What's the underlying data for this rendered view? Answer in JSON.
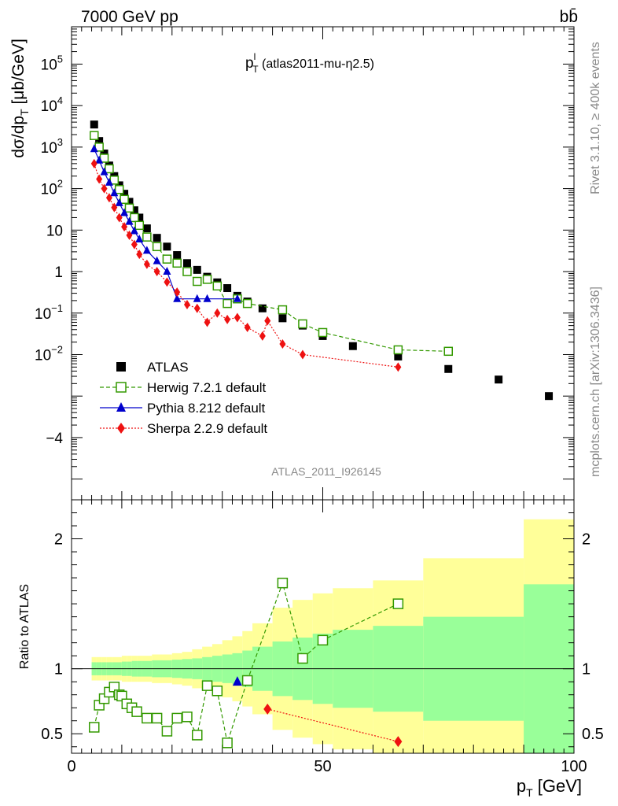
{
  "header": {
    "left": "7000 GeV pp",
    "right": "bb̄"
  },
  "side_labels": {
    "top": "Rivet 3.1.10, ≥ 400k events",
    "bottom": "mcplots.cern.ch [arXiv:1306.3436]"
  },
  "plot_title": "p_T^l (atlas2011-mu-η2.5)",
  "watermark": "ATLAS_2011_I926145",
  "chart_data": [
    {
      "type": "scatter",
      "panel": "main",
      "xlabel": "p_T [GeV]",
      "ylabel": "dσ/dp_T [μb/GeV]",
      "xlim": [
        0,
        100
      ],
      "ylim_log10": [
        -5.5,
        5.9
      ],
      "y_scale": "log",
      "ytick_labels": [
        "10^5",
        "10^4",
        "10^3",
        "10^2",
        "10",
        "1",
        "10^-1",
        "10^-2",
        "−4"
      ],
      "legend_position": "bottom-left",
      "series": [
        {
          "name": "ATLAS",
          "color": "#000000",
          "marker": "filled-square",
          "x": [
            4.5,
            5.5,
            6.5,
            7.5,
            8.5,
            9.5,
            10.5,
            11.5,
            12.5,
            13.5,
            15,
            17,
            19,
            21,
            23,
            25,
            27,
            29,
            31,
            33,
            35,
            38,
            42,
            46,
            50,
            56,
            65,
            75,
            85,
            95
          ],
          "y": [
            3500,
            1400,
            700,
            360,
            200,
            120,
            75,
            48,
            30,
            20,
            11,
            6.5,
            4,
            2.5,
            1.6,
            1.1,
            0.75,
            0.55,
            0.4,
            0.26,
            0.19,
            0.13,
            0.075,
            0.05,
            0.028,
            0.016,
            0.009,
            0.0045,
            0.0025,
            0.001
          ]
        },
        {
          "name": "Herwig 7.2.1 default",
          "color": "#339900",
          "marker": "open-square",
          "line": "dashed",
          "x": [
            4.5,
            5.5,
            6.5,
            7.5,
            8.5,
            9.5,
            10.5,
            11.5,
            12.5,
            13.5,
            15,
            17,
            19,
            21,
            23,
            25,
            27,
            29,
            31,
            33,
            35,
            42,
            46,
            50,
            65,
            75
          ],
          "y": [
            1900,
            1000,
            540,
            300,
            160,
            95,
            55,
            34,
            20,
            13,
            6.8,
            4,
            2,
            1.6,
            1,
            0.58,
            0.65,
            0.45,
            0.17,
            0.22,
            0.17,
            0.12,
            0.055,
            0.034,
            0.013,
            0.012
          ]
        },
        {
          "name": "Pythia 8.212 default",
          "color": "#0000cc",
          "marker": "filled-triangle",
          "line": "solid",
          "x": [
            4.5,
            5.5,
            6.5,
            7.5,
            8.5,
            9.5,
            10.5,
            11.5,
            12.5,
            13.5,
            15,
            17,
            19,
            21,
            25,
            27,
            33
          ],
          "y": [
            900,
            480,
            250,
            140,
            78,
            45,
            26,
            16,
            9.5,
            6,
            3.2,
            1.8,
            1,
            0.22,
            0.22,
            0.22,
            0.22
          ]
        },
        {
          "name": "Sherpa 2.2.9 default",
          "color": "#ee1111",
          "marker": "filled-diamond",
          "line": "dotted",
          "x": [
            4.5,
            5.5,
            6.5,
            7.5,
            8.5,
            9.5,
            10.5,
            11.5,
            12.5,
            13.5,
            15,
            17,
            19,
            21,
            23,
            25,
            27,
            29,
            31,
            33,
            35,
            38,
            39,
            42,
            46,
            65
          ],
          "y": [
            400,
            170,
            100,
            60,
            35,
            20,
            12,
            7.5,
            4.5,
            2.6,
            1.5,
            1,
            0.56,
            0.32,
            0.16,
            0.13,
            0.06,
            0.1,
            0.07,
            0.078,
            0.045,
            0.028,
            0.065,
            0.018,
            0.01,
            0.005
          ]
        }
      ]
    },
    {
      "type": "scatter",
      "panel": "ratio",
      "ylabel": "Ratio to ATLAS",
      "xlim": [
        0,
        100
      ],
      "ylim": [
        0.35,
        2.3
      ],
      "yticks": [
        0.5,
        1,
        2
      ],
      "xticks": [
        0,
        50,
        100
      ],
      "band_edges": [
        4,
        5,
        6,
        7,
        8,
        9,
        10,
        11,
        12,
        13,
        14,
        16,
        18,
        20,
        22,
        24,
        26,
        28,
        30,
        32,
        34,
        36,
        40,
        44,
        48,
        52,
        60,
        70,
        90,
        100
      ],
      "band_green_half": [
        0.05,
        0.05,
        0.05,
        0.05,
        0.05,
        0.05,
        0.055,
        0.055,
        0.06,
        0.06,
        0.06,
        0.065,
        0.065,
        0.07,
        0.075,
        0.08,
        0.09,
        0.1,
        0.11,
        0.12,
        0.14,
        0.17,
        0.21,
        0.24,
        0.27,
        0.3,
        0.33,
        0.4,
        0.65
      ],
      "band_yellow_half": [
        0.09,
        0.09,
        0.09,
        0.09,
        0.09,
        0.09,
        0.1,
        0.1,
        0.1,
        0.1,
        0.1,
        0.11,
        0.11,
        0.12,
        0.13,
        0.15,
        0.17,
        0.19,
        0.22,
        0.25,
        0.29,
        0.35,
        0.47,
        0.53,
        0.58,
        0.62,
        0.68,
        0.85,
        1.15
      ],
      "series": [
        {
          "name": "Herwig 7.2.1 default",
          "color": "#339900",
          "x": [
            4.5,
            5.5,
            6.5,
            7.5,
            8.5,
            9.5,
            10,
            11,
            12,
            13,
            15,
            17,
            19,
            21,
            23,
            25,
            27,
            29,
            31,
            35,
            42,
            46,
            50,
            65
          ],
          "y": [
            0.55,
            0.72,
            0.77,
            0.82,
            0.86,
            0.8,
            0.79,
            0.73,
            0.7,
            0.67,
            0.62,
            0.62,
            0.52,
            0.62,
            0.63,
            0.49,
            0.87,
            0.83,
            0.43,
            0.91,
            1.66,
            1.08,
            1.22,
            1.5
          ]
        },
        {
          "name": "Pythia 8.212 default",
          "color": "#0000cc",
          "x": [
            33
          ],
          "y": [
            0.9
          ]
        },
        {
          "name": "Sherpa 2.2.9 default",
          "color": "#ee1111",
          "x": [
            39,
            65
          ],
          "y": [
            0.69,
            0.44
          ]
        }
      ]
    }
  ]
}
